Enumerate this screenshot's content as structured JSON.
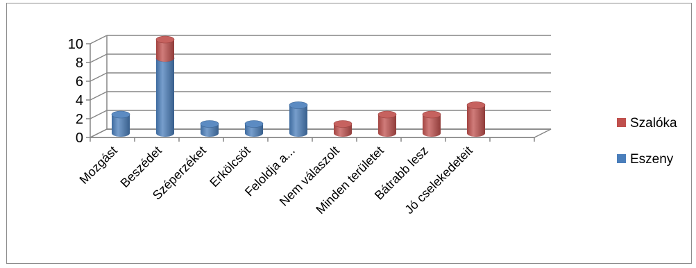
{
  "chart_data": {
    "type": "bar",
    "stacked": true,
    "three_d": true,
    "categories": [
      "Mozgást",
      "Beszédet",
      "Széperzéket",
      "Erkölcsöt",
      "Feloldja a...",
      "Nem válaszolt",
      "Minden területet",
      "Bátrabb lesz",
      "Jó cselekedeteit"
    ],
    "series": [
      {
        "name": "Eszeny",
        "values": [
          2,
          8,
          1,
          1,
          3,
          0,
          0,
          0,
          0
        ],
        "color": "#4a7ebb"
      },
      {
        "name": "Szalóka",
        "values": [
          0,
          2,
          0,
          0,
          0,
          1,
          2,
          2,
          3
        ],
        "color": "#c0504d"
      }
    ],
    "yticks": [
      "0",
      "2",
      "4",
      "6",
      "8",
      "10"
    ],
    "ylim": [
      0,
      10
    ],
    "grid": true,
    "legend": [
      "Szalóka",
      "Eszeny"
    ],
    "legend_position": "right"
  }
}
